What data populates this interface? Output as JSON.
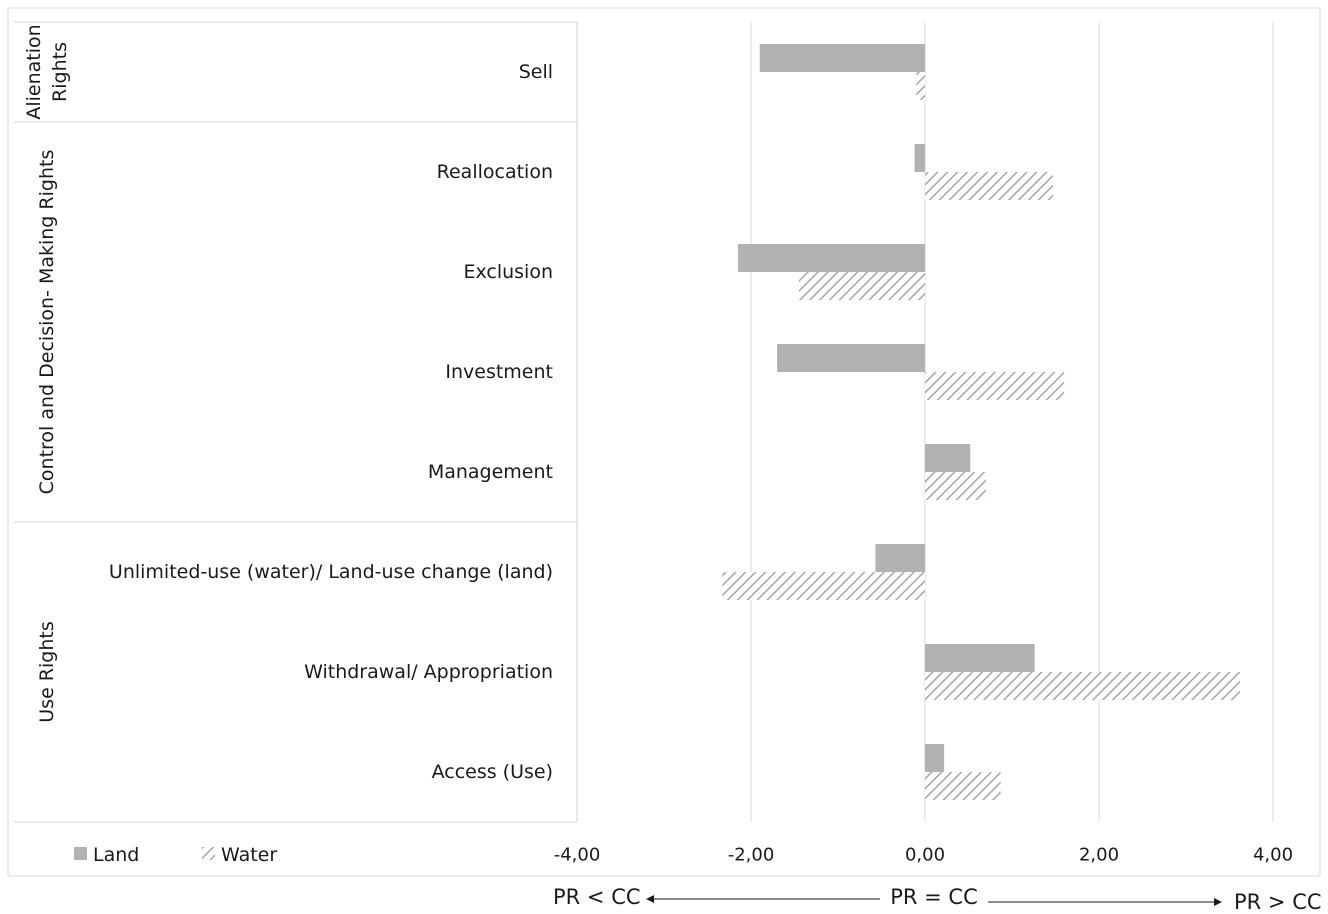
{
  "chart_data": {
    "type": "bar",
    "orientation": "horizontal",
    "categories": [
      "Sell",
      "Reallocation",
      "Exclusion",
      "Investment",
      "Management",
      "Unlimited-use (water)/ Land-use change (land)",
      "Withdrawal/ Appropriation",
      "Access (Use)"
    ],
    "groups": [
      {
        "label": "Alienation Rights",
        "lines": [
          "Alienation",
          "Rights"
        ],
        "categories": [
          "Sell"
        ]
      },
      {
        "label": "Control and Decision- Making Rights",
        "lines": [
          "Control and Decision- Making Rights"
        ],
        "categories": [
          "Reallocation",
          "Exclusion",
          "Investment",
          "Management"
        ]
      },
      {
        "label": "Use Rights",
        "lines": [
          "Use Rights"
        ],
        "categories": [
          "Unlimited-use (water)/ Land-use change (land)",
          "Withdrawal/ Appropriation",
          "Access (Use)"
        ]
      }
    ],
    "series": [
      {
        "name": "Land",
        "pattern": "solid",
        "color": "#b2b2b2",
        "values": [
          -1.9,
          -0.12,
          -2.15,
          -1.7,
          0.52,
          -0.57,
          1.26,
          0.22
        ]
      },
      {
        "name": "Water",
        "pattern": "hatched",
        "color": "#9e9e9e",
        "values": [
          -0.1,
          1.47,
          -1.45,
          1.6,
          0.7,
          -2.33,
          3.62,
          0.87
        ]
      }
    ],
    "x_ticks": [
      "-4,00",
      "-2,00",
      "0,00",
      "2,00",
      "4,00"
    ],
    "xlim": [
      -4,
      4
    ],
    "grid": "vertical",
    "legend_position": "bottom-left",
    "axis_annotation": {
      "left": "PR < CC",
      "center": "PR = CC",
      "right": "PR > CC"
    }
  }
}
